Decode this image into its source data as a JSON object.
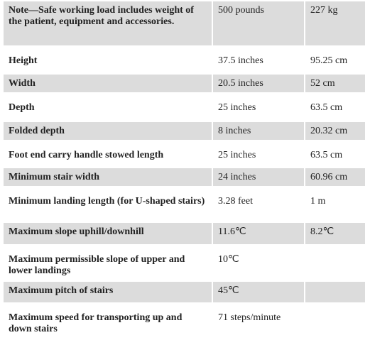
{
  "table": {
    "rows": [
      [
        "Note—Safe working load includes weight of the patient, equipment and accessories.",
        "500 pounds",
        "227 kg"
      ],
      [
        "Height",
        "37.5 inches",
        "95.25 cm"
      ],
      [
        "Width",
        "20.5 inches",
        "52 cm"
      ],
      [
        "Depth",
        "25 inches",
        "63.5 cm"
      ],
      [
        "Folded depth",
        "8 inches",
        "20.32 cm"
      ],
      [
        "Foot end carry handle stowed length",
        "25 inches",
        "63.5 cm"
      ],
      [
        "Minimum stair width",
        "24 inches",
        "60.96 cm"
      ],
      [
        "Minimum landing length (for U-shaped stairs)",
        "3.28 feet",
        "1 m"
      ],
      [
        "Maximum slope uphill/downhill",
        "11.6℃",
        "8.2℃"
      ],
      [
        "Maximum permissible slope of upper and lower landings",
        "10℃"
      ],
      [
        "Maximum pitch of stairs",
        "45℃"
      ],
      [
        "Maximum speed for transporting up and down stairs",
        "71 steps/minute"
      ]
    ]
  }
}
